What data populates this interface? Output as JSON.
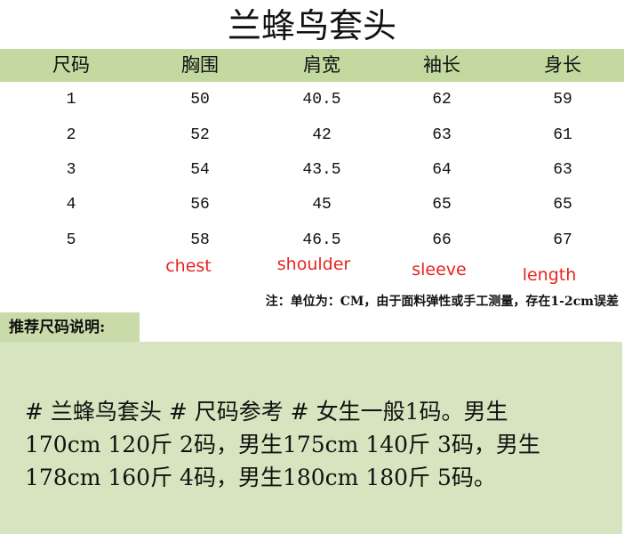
{
  "title": "兰蜂鸟套头",
  "table": {
    "headers": [
      "尺码",
      "胸围",
      "肩宽",
      "袖长",
      "身长"
    ],
    "rows": [
      [
        "1",
        "50",
        "40.5",
        "62",
        "59"
      ],
      [
        "2",
        "52",
        "42",
        "63",
        "61"
      ],
      [
        "3",
        "54",
        "43.5",
        "64",
        "63"
      ],
      [
        "4",
        "56",
        "45",
        "65",
        "65"
      ],
      [
        "5",
        "58",
        "46.5",
        "66",
        "67"
      ]
    ],
    "english_labels": [
      "chest",
      "shoulder",
      "sleeve",
      "length"
    ]
  },
  "note": "注：单位为：CM，由于面料弹性或手工测量，存在1-2cm误差",
  "recommendation": {
    "label": "推荐尺码说明:",
    "lines": [
      "# 兰蜂鸟套头 # 尺码参考 # 女生一般1码。男生",
      "170cm 120斤 2码，男生175cm 140斤 3码，男生",
      "178cm 160斤 4码，男生180cm 180斤 5码。"
    ]
  },
  "colors": {
    "header_bg": "#c3d9a0",
    "box_bg": "#d6e5bf",
    "label_red": "#e8231e"
  }
}
